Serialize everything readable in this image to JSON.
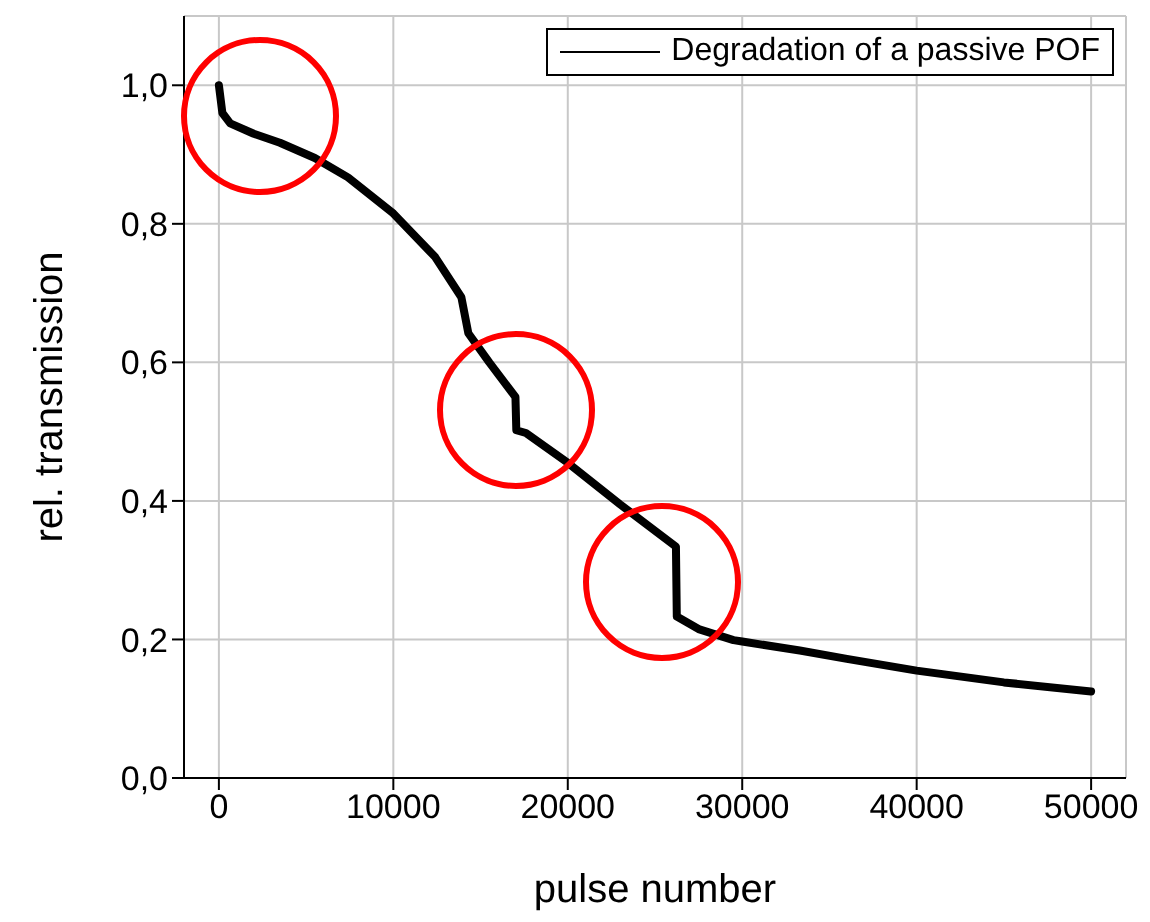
{
  "chart_data": {
    "type": "line",
    "xlabel": "pulse number",
    "ylabel": "rel. transmission",
    "xlim": [
      -2000,
      52000
    ],
    "xticks": [
      0,
      10000,
      20000,
      30000,
      40000,
      50000
    ],
    "ylim": [
      0,
      1.1
    ],
    "yticks": [
      {
        "value": 0,
        "label": "0,0"
      },
      {
        "value": 0.2,
        "label": "0,2"
      },
      {
        "value": 0.4,
        "label": "0,4"
      },
      {
        "value": 0.6,
        "label": "0,6"
      },
      {
        "value": 0.8,
        "label": "0,8"
      },
      {
        "value": 1,
        "label": "1,0"
      }
    ],
    "grid": true,
    "legend": "top right",
    "marker": "none",
    "line_style": "solid",
    "series": [
      {
        "name": "Degradation of a passive POF",
        "color": "#000000",
        "x": [
          0,
          200,
          650,
          2000,
          3500,
          5500,
          7400,
          10000,
          12400,
          13900,
          14300,
          15500,
          17000,
          17050,
          17600,
          20000,
          23000,
          26200,
          26250,
          27500,
          29500,
          30000,
          33300,
          36000,
          40000,
          45000,
          50000
        ],
        "values": [
          1.0,
          0.96,
          0.945,
          0.93,
          0.917,
          0.895,
          0.867,
          0.815,
          0.752,
          0.694,
          0.642,
          0.6,
          0.55,
          0.502,
          0.498,
          0.455,
          0.395,
          0.334,
          0.233,
          0.215,
          0.199,
          0.197,
          0.184,
          0.172,
          0.155,
          0.138,
          0.125
        ]
      }
    ]
  }
}
